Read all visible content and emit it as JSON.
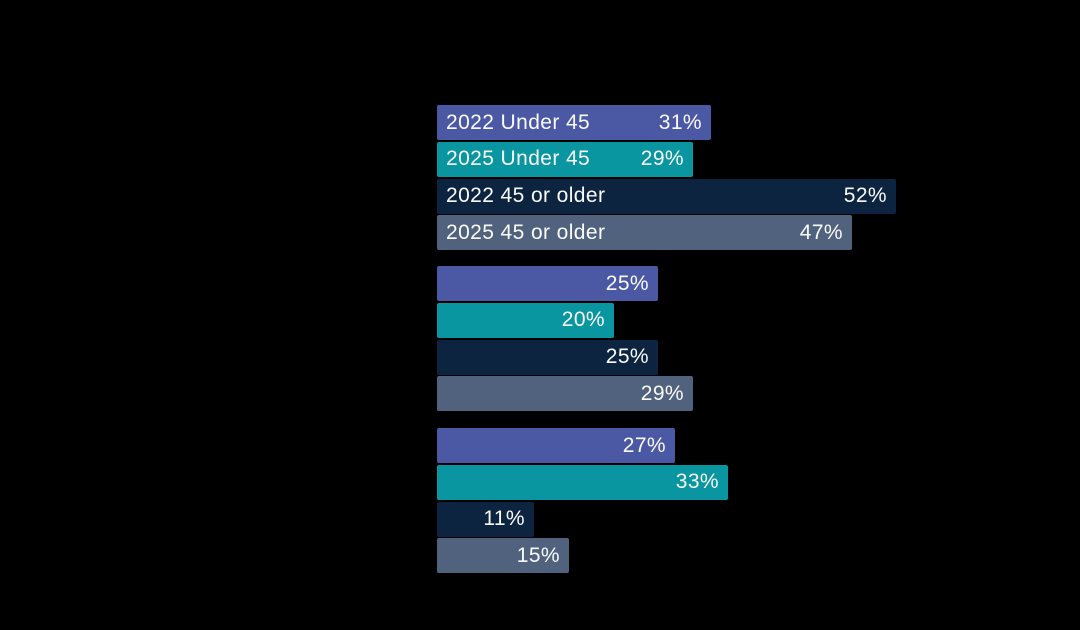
{
  "page": {
    "background_color": "#000000",
    "text_color": "#FAFAFA"
  },
  "chart_data": {
    "type": "bar",
    "orientation": "horizontal",
    "title": "",
    "xlabel": "",
    "ylabel": "",
    "grid": false,
    "axes_visible": false,
    "background": "#000000",
    "value_suffix": "%",
    "xlim": [
      0,
      52
    ],
    "group_count": 3,
    "legend_position": "inline-first-group",
    "series": [
      {
        "name": "2022 Under 45",
        "color": "#4B59A5",
        "values": [
          31,
          25,
          27
        ]
      },
      {
        "name": "2025 Under 45",
        "color": "#0996A1",
        "values": [
          29,
          20,
          33
        ]
      },
      {
        "name": "2022 45 or older",
        "color": "#0D2440",
        "values": [
          52,
          25,
          11
        ]
      },
      {
        "name": "2025 45 or older",
        "color": "#50627D",
        "values": [
          47,
          29,
          15
        ]
      }
    ]
  }
}
